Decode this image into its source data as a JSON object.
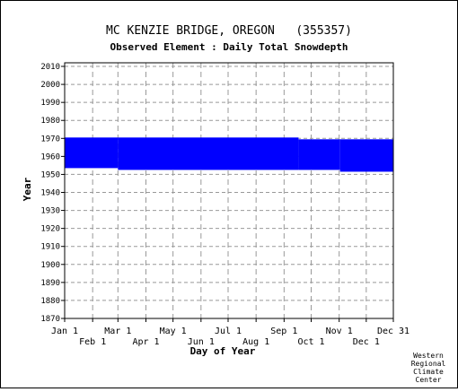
{
  "chart_data": {
    "type": "bar",
    "title": "MC KENZIE BRIDGE, OREGON   (355357)",
    "subtitle": "Observed Element : Daily Total Snowdepth",
    "xlabel": "Day of Year",
    "ylabel": "Year",
    "ylim": [
      1870,
      2012
    ],
    "xlim": [
      1,
      365
    ],
    "y_ticks": [
      1870,
      1880,
      1890,
      1900,
      1910,
      1920,
      1930,
      1940,
      1950,
      1960,
      1970,
      1980,
      1990,
      2000,
      2010
    ],
    "x_ticks_top_row": [
      {
        "label": "Jan 1",
        "day": 1
      },
      {
        "label": "Mar 1",
        "day": 60
      },
      {
        "label": "May 1",
        "day": 121
      },
      {
        "label": "Jul 1",
        "day": 182
      },
      {
        "label": "Sep 1",
        "day": 244
      },
      {
        "label": "Nov 1",
        "day": 305
      },
      {
        "label": "Dec 31",
        "day": 365
      }
    ],
    "x_ticks_bottom_row": [
      {
        "label": "Feb 1",
        "day": 32
      },
      {
        "label": "Apr 1",
        "day": 91
      },
      {
        "label": "Jun 1",
        "day": 152
      },
      {
        "label": "Aug 1",
        "day": 213
      },
      {
        "label": "Oct 1",
        "day": 274
      },
      {
        "label": "Dec 1",
        "day": 335
      }
    ],
    "grid": true,
    "series_color": "#0000ff",
    "data_coverage": [
      {
        "start_day": 1,
        "end_day": 59,
        "start_year": 1954,
        "end_year": 1970
      },
      {
        "start_day": 60,
        "end_day": 259,
        "start_year": 1953,
        "end_year": 1970
      },
      {
        "start_day": 260,
        "end_day": 305,
        "start_year": 1953,
        "end_year": 1969
      },
      {
        "start_day": 306,
        "end_day": 365,
        "start_year": 1952,
        "end_year": 1969
      }
    ]
  },
  "credit": [
    "Western",
    "Regional",
    "Climate",
    "Center"
  ]
}
